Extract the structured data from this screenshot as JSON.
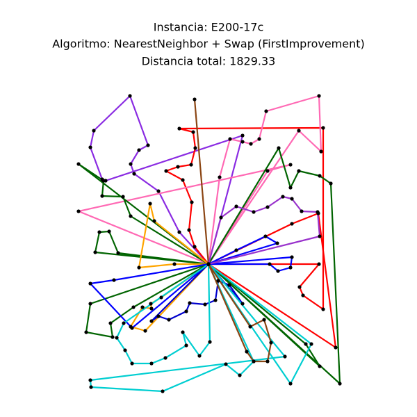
{
  "chart_data": {
    "type": "route",
    "title": "Instancia: E200-17c",
    "subtitle": "Algoritmo: NearestNeighbor + Swap (FirstImprovement)",
    "annotation": "Distancia total: 1829.33",
    "xlim": [
      100,
      500
    ],
    "ylim": [
      30,
      470
    ],
    "marker_color": "#000000",
    "series": [
      {
        "color": "#8a2be2",
        "x": [
          300,
          258,
          228,
          193,
          188,
          200,
          213,
          187,
          135,
          130,
          147,
          152,
          349,
          300
        ],
        "y": [
          220,
          266,
          325,
          350,
          364,
          384,
          391,
          462,
          412,
          388,
          342,
          340,
          405,
          220
        ]
      },
      {
        "color": "#ff0000",
        "x": [
          300,
          280,
          272,
          276,
          263,
          239,
          256,
          275,
          281,
          278,
          258,
          465,
          465,
          436,
          431,
          459,
          300
        ],
        "y": [
          220,
          245,
          269,
          309,
          341,
          354,
          360,
          363,
          387,
          410,
          415,
          416,
          155,
          175,
          187,
          220,
          220
        ]
      },
      {
        "color": "#ff0000",
        "x": [
          300,
          420,
          458,
          483,
          300
        ],
        "y": [
          220,
          278,
          293,
          100,
          220
        ]
      },
      {
        "color": "#ff69b4",
        "x": [
          300,
          316,
          331,
          349,
          361,
          373,
          383,
          459,
          462,
          430,
          300
        ],
        "y": [
          220,
          345,
          400,
          396,
          393,
          400,
          440,
          462,
          382,
          412,
          220
        ]
      },
      {
        "color": "#ff69b4",
        "x": [
          300,
          113,
          418,
          385,
          300
        ],
        "y": [
          220,
          296,
          363,
          354,
          220
        ]
      },
      {
        "color": "#006400",
        "x": [
          300,
          113,
          149,
          147,
          177,
          188,
          300
        ],
        "y": [
          220,
          364,
          340,
          318,
          317,
          289,
          220
        ]
      },
      {
        "color": "#006400",
        "x": [
          300,
          401,
          418,
          430,
          460,
          476,
          489,
          300
        ],
        "y": [
          220,
          387,
          330,
          354,
          347,
          336,
          48,
          220
        ]
      },
      {
        "color": "#006400",
        "x": [
          300,
          170,
          157,
          143,
          137,
          300
        ],
        "y": [
          220,
          236,
          267,
          266,
          237,
          220
        ]
      },
      {
        "color": "#006400",
        "x": [
          300,
          130,
          124,
          162,
          159,
          192,
          300
        ],
        "y": [
          220,
          163,
          122,
          115,
          135,
          158,
          220
        ]
      },
      {
        "color": "#006400",
        "x": [
          300,
          460,
          440,
          300
        ],
        "y": [
          220,
          73,
          105,
          220
        ]
      },
      {
        "color": "#ffa500",
        "x": [
          300,
          222,
          216,
          200,
          251,
          300
        ],
        "y": [
          220,
          282,
          307,
          215,
          220,
          220
        ]
      },
      {
        "color": "#ffa500",
        "x": [
          300,
          232,
          217,
          218,
          205,
          188,
          209,
          300
        ],
        "y": [
          220,
          172,
          163,
          156,
          158,
          130,
          124,
          220
        ]
      },
      {
        "color": "#0000ff",
        "x": [
          300,
          340,
          382,
          399,
          300
        ],
        "y": [
          220,
          240,
          260,
          250,
          220
        ]
      },
      {
        "color": "#0000ff",
        "x": [
          300,
          164,
          130,
          190,
          300
        ],
        "y": [
          220,
          197,
          192,
          128,
          220
        ]
      },
      {
        "color": "#0000ff",
        "x": [
          300,
          388,
          400,
          418,
          420,
          300
        ],
        "y": [
          220,
          220,
          210,
          215,
          230,
          220
        ]
      },
      {
        "color": "#0000cd",
        "x": [
          300,
          349,
          330,
          314,
          310,
          295,
          273,
          268,
          243,
          228,
          218,
          300
        ],
        "y": [
          220,
          163,
          190,
          196,
          168,
          162,
          164,
          152,
          140,
          145,
          138,
          220
        ]
      },
      {
        "color": "#00ced1",
        "x": [
          300,
          302,
          287,
          263,
          268,
          238,
          218,
          190,
          180,
          168,
          178,
          300
        ],
        "y": [
          220,
          108,
          88,
          122,
          103,
          85,
          77,
          77,
          96,
          114,
          135,
          220
        ]
      },
      {
        "color": "#00ced1",
        "x": [
          300,
          410,
          130,
          131,
          234,
          325,
          345,
          365,
          300
        ],
        "y": [
          220,
          87,
          53,
          43,
          37,
          76,
          60,
          80,
          220
        ]
      },
      {
        "color": "#00ced1",
        "x": [
          300,
          418,
          448,
          300
        ],
        "y": [
          220,
          48,
          105,
          220
        ]
      },
      {
        "color": "#8b4513",
        "x": [
          300,
          280,
          300
        ],
        "y": [
          220,
          457,
          220
        ]
      },
      {
        "color": "#8b4513",
        "x": [
          300,
          360,
          380,
          390,
          385,
          365,
          355,
          300
        ],
        "y": [
          220,
          130,
          140,
          107,
          80,
          80,
          94,
          220
        ]
      },
      {
        "color": "#9932cc",
        "x": [
          300,
          460,
          457,
          434,
          420,
          407,
          385,
          365,
          340,
          318,
          300
        ],
        "y": [
          220,
          260,
          295,
          296,
          314,
          317,
          302,
          295,
          303,
          287,
          220
        ]
      }
    ]
  }
}
